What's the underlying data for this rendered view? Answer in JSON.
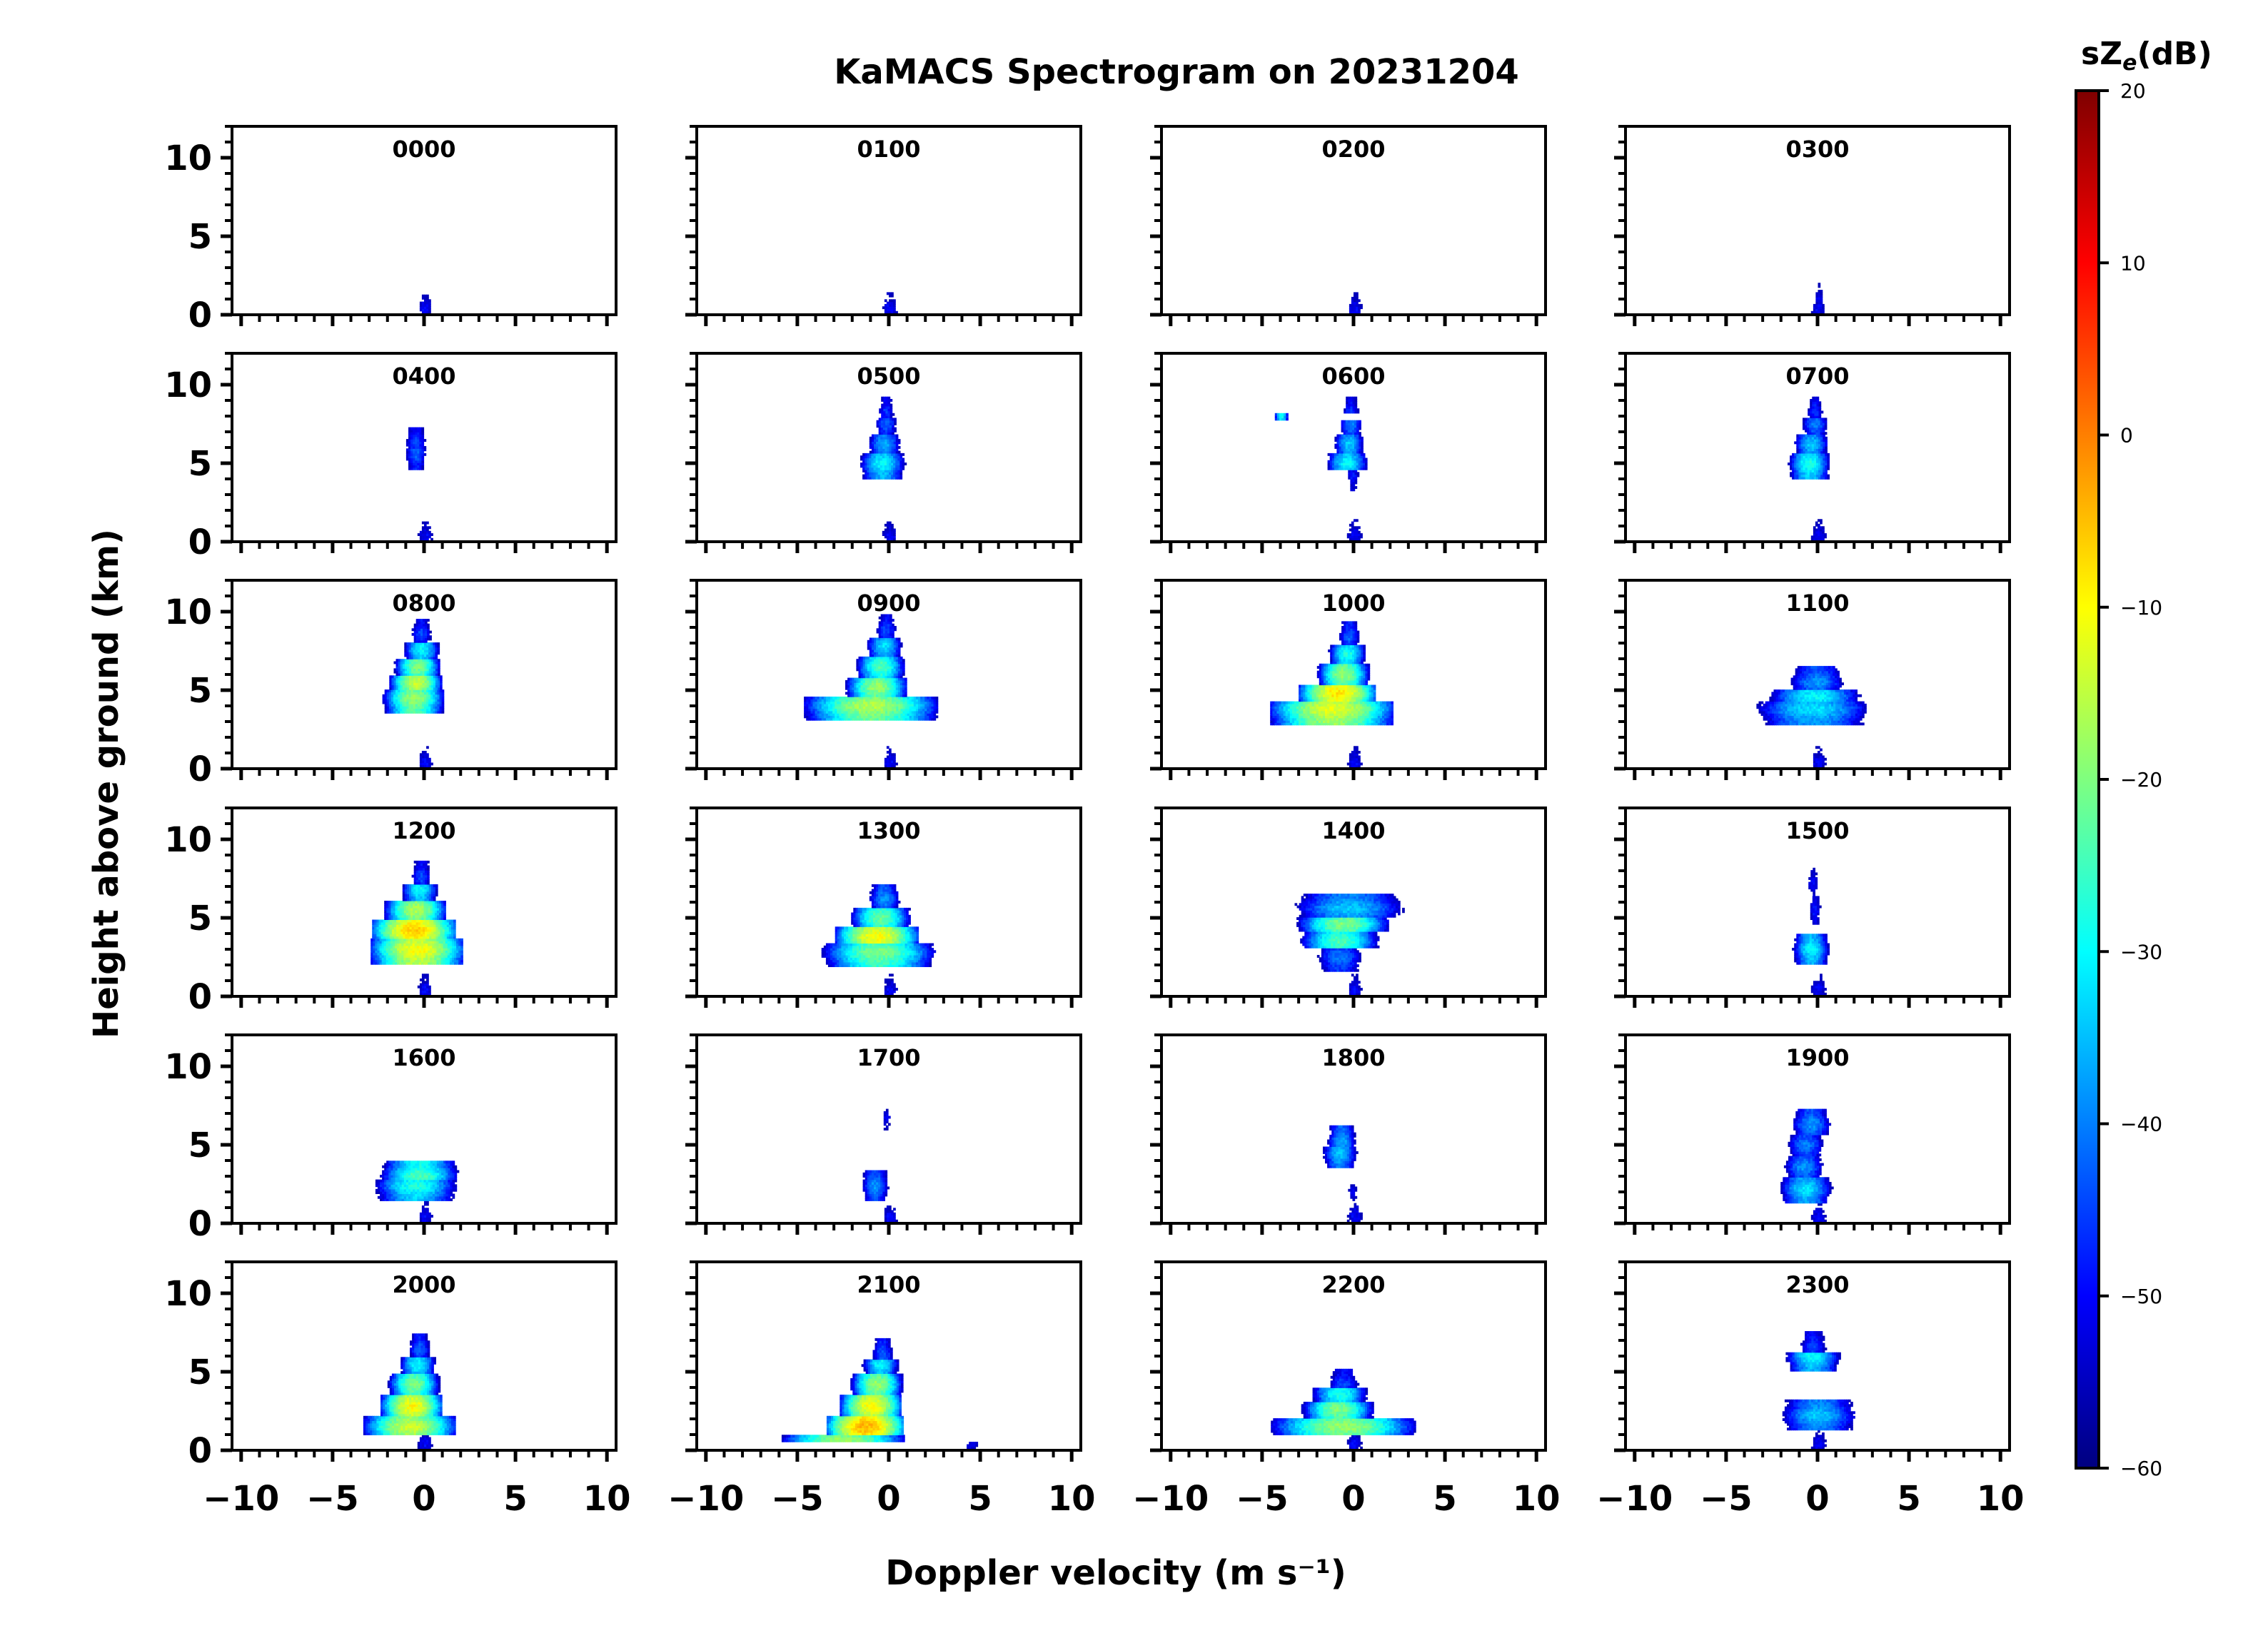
{
  "chart_data": {
    "type": "heatmap",
    "title": "KaMACS Spectrogram on 20231204",
    "xlabel": "Doppler velocity (m s⁻¹)",
    "ylabel": "Height above ground (km)",
    "xlim": [
      -10.5,
      10.5
    ],
    "ylim": [
      0,
      12
    ],
    "x_ticks": [
      -10,
      -5,
      0,
      5,
      10
    ],
    "x_tick_labels": [
      "−10",
      "−5",
      "0",
      "5",
      "10"
    ],
    "y_ticks": [
      0,
      5,
      10
    ],
    "y_tick_labels": [
      "0",
      "5",
      "10"
    ],
    "colorbar": {
      "label_main": "sZ",
      "label_sub": "e",
      "label_unit": "(dB)",
      "min": -60,
      "max": 20,
      "ticks": [
        20,
        10,
        0,
        -10,
        -20,
        -30,
        -40,
        -50,
        -60
      ],
      "tick_labels": [
        "20",
        "10",
        "0",
        "−10",
        "−20",
        "−30",
        "−40",
        "−50",
        "−60"
      ],
      "colors": [
        "#00007f",
        "#0000ff",
        "#007fff",
        "#00ffff",
        "#7fff7f",
        "#ffff00",
        "#ff7f00",
        "#ff0000",
        "#7f0000"
      ]
    },
    "panels": [
      {
        "label": "0000",
        "layers": [
          {
            "h": 0.4,
            "v": 0,
            "w": 0.6,
            "amp": -50
          }
        ]
      },
      {
        "label": "0100",
        "layers": [
          {
            "h": 0.4,
            "v": 0,
            "w": 0.6,
            "amp": -50
          }
        ]
      },
      {
        "label": "0200",
        "layers": [
          {
            "h": 0.4,
            "v": 0,
            "w": 0.6,
            "amp": -50
          }
        ]
      },
      {
        "label": "0300",
        "layers": [
          {
            "h": 0.4,
            "v": 0,
            "w": 0.6,
            "amp": -50
          },
          {
            "h": 1.0,
            "v": 0,
            "w": 0.5,
            "amp": -52
          }
        ]
      },
      {
        "label": "0400",
        "layers": [
          {
            "h": 0.4,
            "v": 0,
            "w": 0.6,
            "amp": -50
          },
          {
            "h": 5.6,
            "v": -0.5,
            "w": 0.6,
            "amp": -42
          },
          {
            "h": 6.3,
            "v": -0.5,
            "w": 0.6,
            "amp": -44
          }
        ]
      },
      {
        "label": "0500",
        "layers": [
          {
            "h": 0.4,
            "v": 0,
            "w": 0.6,
            "amp": -50
          },
          {
            "h": 5.0,
            "v": -0.4,
            "w": 1.0,
            "amp": -30
          },
          {
            "h": 6.2,
            "v": -0.3,
            "w": 0.8,
            "amp": -36
          },
          {
            "h": 7.5,
            "v": -0.2,
            "w": 0.6,
            "amp": -42
          },
          {
            "h": 8.3,
            "v": -0.2,
            "w": 0.5,
            "amp": -46
          }
        ]
      },
      {
        "label": "0600",
        "layers": [
          {
            "h": 0.4,
            "v": 0,
            "w": 0.6,
            "amp": -50
          },
          {
            "h": 4.2,
            "v": -0.1,
            "w": 0.4,
            "amp": -48
          },
          {
            "h": 5.0,
            "v": -0.4,
            "w": 0.9,
            "amp": -30
          },
          {
            "h": 6.2,
            "v": -0.3,
            "w": 0.7,
            "amp": -34
          },
          {
            "h": 7.5,
            "v": -0.2,
            "w": 0.6,
            "amp": -40
          },
          {
            "h": 8.3,
            "v": -0.2,
            "w": 0.5,
            "amp": -46
          },
          {
            "h": 8.0,
            "v": -4,
            "w": 0.3,
            "amp": -30
          }
        ]
      },
      {
        "label": "0700",
        "layers": [
          {
            "h": 0.4,
            "v": 0,
            "w": 0.6,
            "amp": -50
          },
          {
            "h": 5.0,
            "v": -0.5,
            "w": 0.9,
            "amp": -28
          },
          {
            "h": 6.2,
            "v": -0.4,
            "w": 0.8,
            "amp": -34
          },
          {
            "h": 7.5,
            "v": -0.2,
            "w": 0.7,
            "amp": -40
          },
          {
            "h": 8.3,
            "v": -0.2,
            "w": 0.5,
            "amp": -46
          }
        ]
      },
      {
        "label": "0800",
        "layers": [
          {
            "h": 0.4,
            "v": 0,
            "w": 0.6,
            "amp": -50
          },
          {
            "h": 4.5,
            "v": -0.6,
            "w": 1.2,
            "amp": -18
          },
          {
            "h": 5.5,
            "v": -0.5,
            "w": 1.0,
            "amp": -14
          },
          {
            "h": 6.5,
            "v": -0.4,
            "w": 0.9,
            "amp": -20
          },
          {
            "h": 7.6,
            "v": -0.2,
            "w": 0.8,
            "amp": -30
          },
          {
            "h": 8.6,
            "v": -0.2,
            "w": 0.6,
            "amp": -44
          }
        ]
      },
      {
        "label": "0900",
        "layers": [
          {
            "h": 0.4,
            "v": 0,
            "w": 0.6,
            "amp": -50
          },
          {
            "h": 4.0,
            "v": -1.0,
            "w": 2.6,
            "amp": -16
          },
          {
            "h": 5.2,
            "v": -0.7,
            "w": 1.2,
            "amp": -18
          },
          {
            "h": 6.5,
            "v": -0.5,
            "w": 1.0,
            "amp": -24
          },
          {
            "h": 7.8,
            "v": -0.3,
            "w": 0.8,
            "amp": -32
          },
          {
            "h": 8.8,
            "v": -0.2,
            "w": 0.6,
            "amp": -44
          }
        ]
      },
      {
        "label": "1000",
        "layers": [
          {
            "h": 0.4,
            "v": 0,
            "w": 0.6,
            "amp": -50
          },
          {
            "h": 3.8,
            "v": -1.2,
            "w": 2.4,
            "amp": -12
          },
          {
            "h": 4.8,
            "v": -0.9,
            "w": 1.5,
            "amp": -8
          },
          {
            "h": 6.0,
            "v": -0.6,
            "w": 1.0,
            "amp": -18
          },
          {
            "h": 7.3,
            "v": -0.4,
            "w": 0.8,
            "amp": -28
          },
          {
            "h": 8.4,
            "v": -0.3,
            "w": 0.6,
            "amp": -42
          }
        ]
      },
      {
        "label": "1100",
        "layers": [
          {
            "h": 0.4,
            "v": 0,
            "w": 0.6,
            "amp": -50
          },
          {
            "h": 3.8,
            "v": -0.3,
            "w": 2.6,
            "amp": -32
          },
          {
            "h": 4.6,
            "v": -0.2,
            "w": 2.0,
            "amp": -30
          },
          {
            "h": 5.5,
            "v": -0.1,
            "w": 1.4,
            "amp": -38
          }
        ]
      },
      {
        "label": "1200",
        "layers": [
          {
            "h": 0.4,
            "v": 0,
            "w": 0.6,
            "amp": -50
          },
          {
            "h": 3.0,
            "v": -0.4,
            "w": 1.8,
            "amp": -10
          },
          {
            "h": 4.2,
            "v": -0.6,
            "w": 1.6,
            "amp": -6
          },
          {
            "h": 5.5,
            "v": -0.5,
            "w": 1.2,
            "amp": -16
          },
          {
            "h": 6.8,
            "v": -0.3,
            "w": 0.8,
            "amp": -30
          },
          {
            "h": 7.6,
            "v": -0.2,
            "w": 0.6,
            "amp": -44
          }
        ]
      },
      {
        "label": "1300",
        "layers": [
          {
            "h": 0.4,
            "v": 0,
            "w": 0.6,
            "amp": -50
          },
          {
            "h": 2.8,
            "v": -0.6,
            "w": 2.2,
            "amp": -20
          },
          {
            "h": 3.8,
            "v": -0.7,
            "w": 1.6,
            "amp": -10
          },
          {
            "h": 5.0,
            "v": -0.5,
            "w": 1.2,
            "amp": -22
          },
          {
            "h": 6.2,
            "v": -0.3,
            "w": 0.8,
            "amp": -38
          }
        ]
      },
      {
        "label": "1400",
        "layers": [
          {
            "h": 0.4,
            "v": 0,
            "w": 0.6,
            "amp": -50
          },
          {
            "h": 2.5,
            "v": -0.8,
            "w": 1.2,
            "amp": -40
          },
          {
            "h": 3.5,
            "v": -0.8,
            "w": 1.6,
            "amp": -24
          },
          {
            "h": 4.6,
            "v": -0.6,
            "w": 1.8,
            "amp": -20
          },
          {
            "h": 5.6,
            "v": -0.3,
            "w": 2.6,
            "amp": -34
          }
        ]
      },
      {
        "label": "1500",
        "layers": [
          {
            "h": 0.4,
            "v": 0,
            "w": 0.6,
            "amp": -50
          },
          {
            "h": 3.0,
            "v": -0.4,
            "w": 0.8,
            "amp": -30
          },
          {
            "h": 5.5,
            "v": -0.2,
            "w": 0.4,
            "amp": -48
          },
          {
            "h": 7.2,
            "v": -0.3,
            "w": 0.4,
            "amp": -50
          }
        ]
      },
      {
        "label": "1600",
        "layers": [
          {
            "h": 0.4,
            "v": 0,
            "w": 0.6,
            "amp": -50
          },
          {
            "h": 2.4,
            "v": -0.5,
            "w": 1.8,
            "amp": -28
          },
          {
            "h": 3.0,
            "v": -0.3,
            "w": 1.6,
            "amp": -24
          }
        ]
      },
      {
        "label": "1700",
        "layers": [
          {
            "h": 0.4,
            "v": 0,
            "w": 0.6,
            "amp": -50
          },
          {
            "h": 2.4,
            "v": -0.8,
            "w": 0.7,
            "amp": -38
          },
          {
            "h": 6.7,
            "v": -0.2,
            "w": 0.4,
            "amp": -52
          }
        ]
      },
      {
        "label": "1800",
        "layers": [
          {
            "h": 0.4,
            "v": 0,
            "w": 0.6,
            "amp": -50
          },
          {
            "h": 0.8,
            "v": 0,
            "w": 0.5,
            "amp": -52
          },
          {
            "h": 2.0,
            "v": -0.1,
            "w": 0.4,
            "amp": -52
          },
          {
            "h": 4.5,
            "v": -0.8,
            "w": 0.8,
            "amp": -34
          },
          {
            "h": 5.2,
            "v": -0.7,
            "w": 0.7,
            "amp": -36
          }
        ]
      },
      {
        "label": "1900",
        "layers": [
          {
            "h": 0.4,
            "v": 0,
            "w": 0.6,
            "amp": -50
          },
          {
            "h": 2.2,
            "v": -0.7,
            "w": 1.2,
            "amp": -32
          },
          {
            "h": 3.6,
            "v": -0.8,
            "w": 1.0,
            "amp": -38
          },
          {
            "h": 5.0,
            "v": -0.7,
            "w": 1.0,
            "amp": -40
          },
          {
            "h": 6.3,
            "v": -0.4,
            "w": 1.0,
            "amp": -38
          }
        ]
      },
      {
        "label": "2000",
        "layers": [
          {
            "h": 0.4,
            "v": 0,
            "w": 0.6,
            "amp": -50
          },
          {
            "h": 1.5,
            "v": -0.8,
            "w": 1.8,
            "amp": -14
          },
          {
            "h": 2.8,
            "v": -0.7,
            "w": 1.2,
            "amp": -10
          },
          {
            "h": 4.2,
            "v": -0.6,
            "w": 1.0,
            "amp": -20
          },
          {
            "h": 5.5,
            "v": -0.4,
            "w": 0.8,
            "amp": -30
          },
          {
            "h": 6.4,
            "v": -0.3,
            "w": 0.6,
            "amp": -42
          }
        ]
      },
      {
        "label": "2100",
        "layers": [
          {
            "h": 0.4,
            "v": 4.5,
            "w": 0.6,
            "amp": -52
          },
          {
            "h": 0.6,
            "v": -2.5,
            "w": 2.4,
            "amp": -18
          },
          {
            "h": 1.5,
            "v": -1.3,
            "w": 1.5,
            "amp": -4
          },
          {
            "h": 2.8,
            "v": -1.0,
            "w": 1.2,
            "amp": -10
          },
          {
            "h": 4.2,
            "v": -0.7,
            "w": 1.0,
            "amp": -18
          },
          {
            "h": 5.5,
            "v": -0.5,
            "w": 0.8,
            "amp": -30
          },
          {
            "h": 6.1,
            "v": -0.4,
            "w": 0.6,
            "amp": -42
          }
        ]
      },
      {
        "label": "2200",
        "layers": [
          {
            "h": 0.4,
            "v": 0,
            "w": 0.6,
            "amp": -50
          },
          {
            "h": 1.5,
            "v": -0.6,
            "w": 2.8,
            "amp": -18
          },
          {
            "h": 2.6,
            "v": -0.9,
            "w": 1.4,
            "amp": -20
          },
          {
            "h": 3.6,
            "v": -0.8,
            "w": 1.2,
            "amp": -28
          },
          {
            "h": 4.2,
            "v": -0.6,
            "w": 0.9,
            "amp": -44
          }
        ]
      },
      {
        "label": "2300",
        "layers": [
          {
            "h": 0.4,
            "v": 0,
            "w": 0.6,
            "amp": -50
          },
          {
            "h": 2.2,
            "v": 0,
            "w": 1.8,
            "amp": -34
          },
          {
            "h": 6.0,
            "v": -0.3,
            "w": 1.2,
            "amp": -30
          },
          {
            "h": 6.6,
            "v": -0.3,
            "w": 0.8,
            "amp": -44
          }
        ]
      }
    ]
  }
}
